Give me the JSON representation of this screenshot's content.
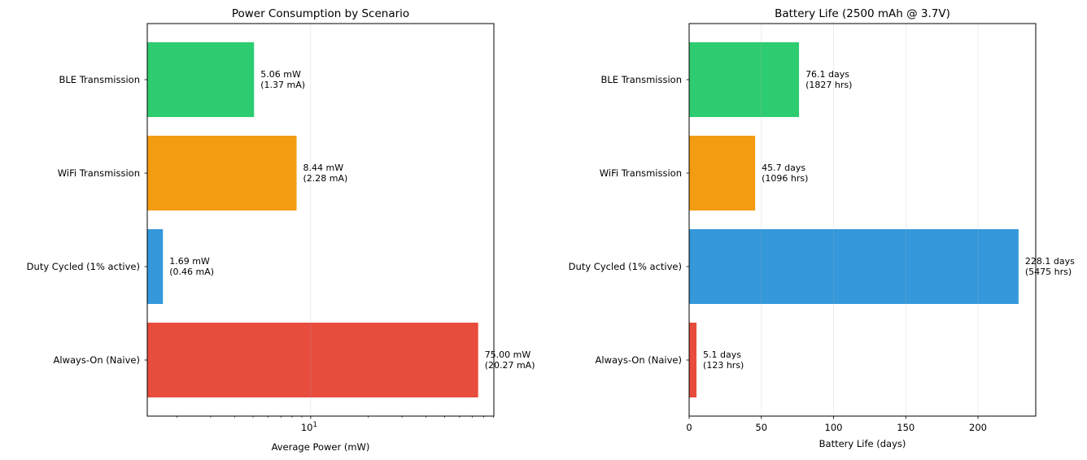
{
  "chart_data": [
    {
      "type": "bar",
      "orientation": "horizontal",
      "title": "Power Consumption by Scenario",
      "xlabel": "Average Power (mW)",
      "ylabel": "",
      "xscale": "log",
      "xlim": [
        1.4,
        90.6
      ],
      "xticks": [
        {
          "value": 10,
          "label": "10",
          "exponent": "1"
        }
      ],
      "grid": "x",
      "categories": [
        "Always-On (Naive)",
        "Duty Cycled (1% active)",
        "WiFi Transmission",
        "BLE Transmission"
      ],
      "values": [
        75.0,
        1.69,
        8.44,
        5.06
      ],
      "colors": [
        "#e74c3c",
        "#3498db",
        "#f39c12",
        "#2ecc71"
      ],
      "data_labels": [
        [
          "75.00 mW",
          "(20.27 mA)"
        ],
        [
          "1.69 mW",
          "(0.46 mA)"
        ],
        [
          "8.44 mW",
          "(2.28 mA)"
        ],
        [
          "5.06 mW",
          "(1.37 mA)"
        ]
      ]
    },
    {
      "type": "bar",
      "orientation": "horizontal",
      "title": "Battery Life (2500 mAh @ 3.7V)",
      "xlabel": "Battery Life (days)",
      "ylabel": "",
      "xscale": "linear",
      "xlim": [
        0,
        240
      ],
      "xticks": [
        {
          "value": 0,
          "label": "0"
        },
        {
          "value": 50,
          "label": "50"
        },
        {
          "value": 100,
          "label": "100"
        },
        {
          "value": 150,
          "label": "150"
        },
        {
          "value": 200,
          "label": "200"
        }
      ],
      "grid": "x",
      "categories": [
        "Always-On (Naive)",
        "Duty Cycled (1% active)",
        "WiFi Transmission",
        "BLE Transmission"
      ],
      "values": [
        5.1,
        228.1,
        45.7,
        76.1
      ],
      "colors": [
        "#e74c3c",
        "#3498db",
        "#f39c12",
        "#2ecc71"
      ],
      "data_labels": [
        [
          "5.1 days",
          "(123 hrs)"
        ],
        [
          "228.1 days",
          "(5475 hrs)"
        ],
        [
          "45.7 days",
          "(1096 hrs)"
        ],
        [
          "76.1 days",
          "(1827 hrs)"
        ]
      ]
    }
  ]
}
